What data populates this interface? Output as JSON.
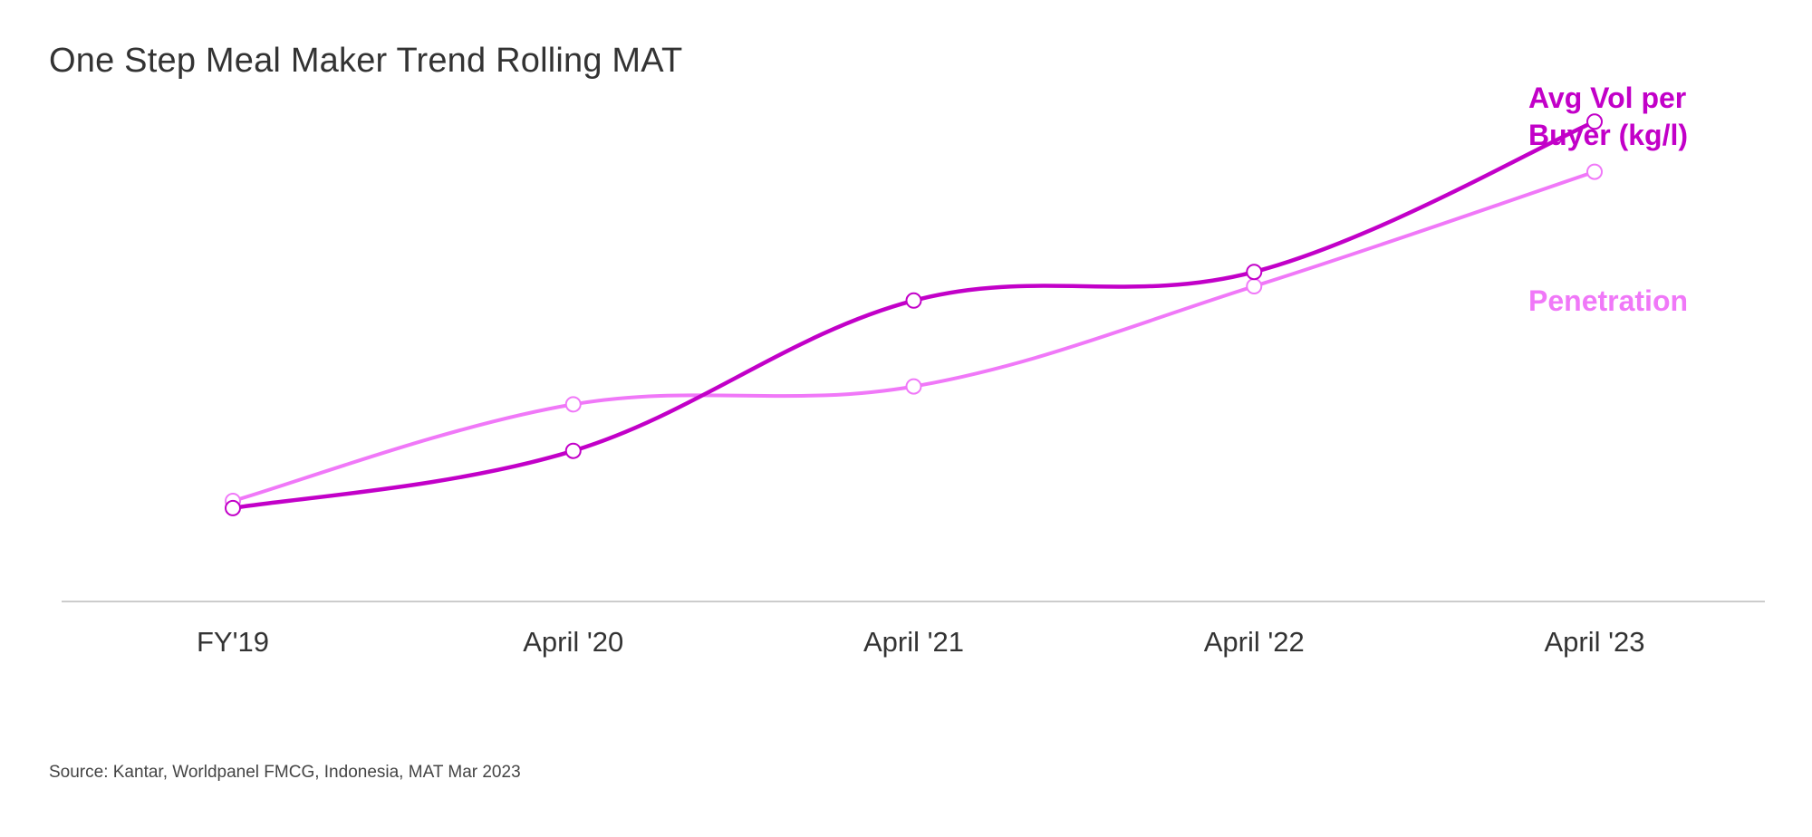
{
  "title": "One Step Meal Maker Trend Rolling MAT",
  "source": "Source: Kantar, Worldpanel FMCG, Indonesia, MAT Mar 2023",
  "colors": {
    "avg_vol": "#C200C8",
    "penetration": "#F078F8",
    "axis": "#bbbbbb",
    "text": "#333333"
  },
  "chart_data": {
    "type": "line",
    "title": "One Step Meal Maker Trend Rolling MAT",
    "xlabel": "",
    "ylabel": "",
    "categories": [
      "FY'19",
      "April '20",
      "April '21",
      "April '22",
      "April '23"
    ],
    "y_axis_shown": false,
    "grid": false,
    "ylim": [
      0,
      100
    ],
    "series": [
      {
        "name": "Avg Vol per Buyer (kg/l)",
        "label_lines": [
          "Avg Vol per",
          "Buyer (kg/l)"
        ],
        "color": "#C200C8",
        "values": [
          29,
          37,
          58,
          62,
          83
        ]
      },
      {
        "name": "Penetration",
        "label_lines": [
          "Penetration"
        ],
        "color": "#F078F8",
        "values": [
          30,
          43.5,
          46,
          60,
          76
        ]
      }
    ]
  }
}
